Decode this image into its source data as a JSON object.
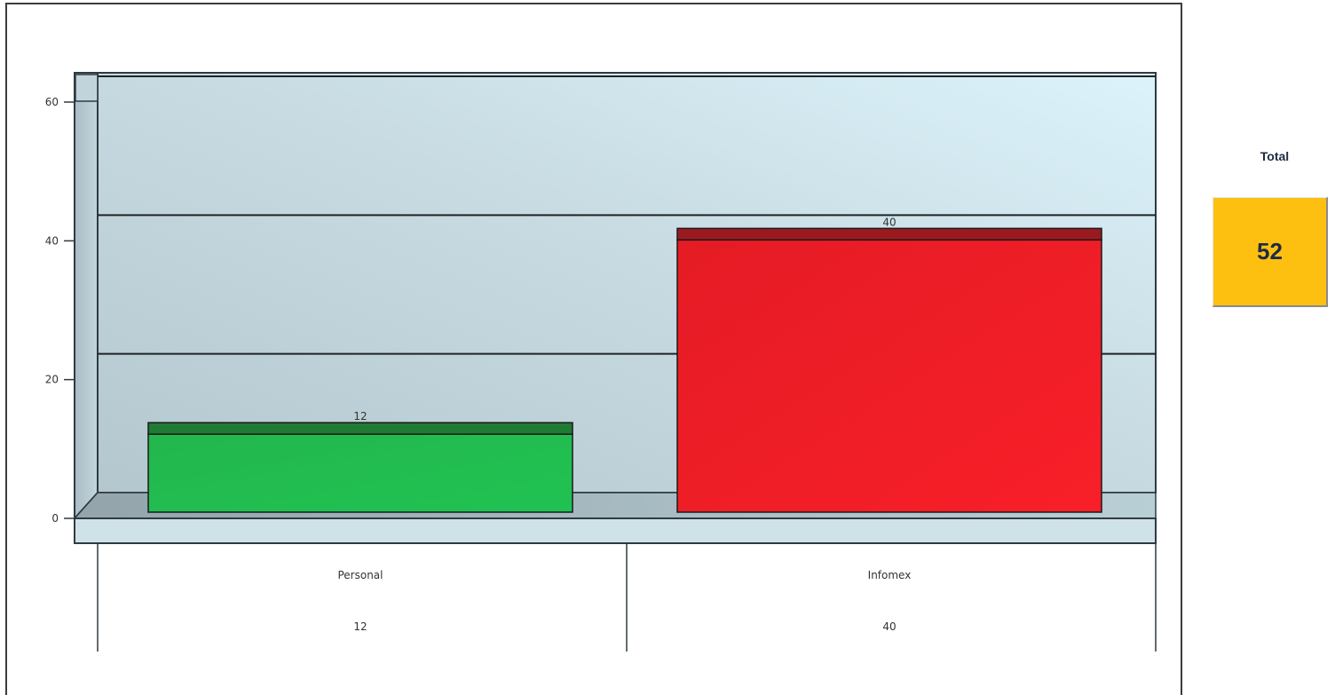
{
  "chart_data": {
    "type": "bar",
    "categories": [
      "Personal",
      "Infomex"
    ],
    "series": [
      {
        "values": [
          12,
          40
        ],
        "colors": [
          "#22b34c",
          "#ee1c25"
        ]
      }
    ],
    "data_labels": [
      "12",
      "40"
    ],
    "table_values": [
      "12",
      "40"
    ],
    "yticks": [
      "0",
      "20",
      "40",
      "60"
    ],
    "ylim": [
      0,
      60
    ],
    "grid": true,
    "style": "3d"
  },
  "total": {
    "label": "Total",
    "value": "52",
    "color": "#fec010"
  }
}
